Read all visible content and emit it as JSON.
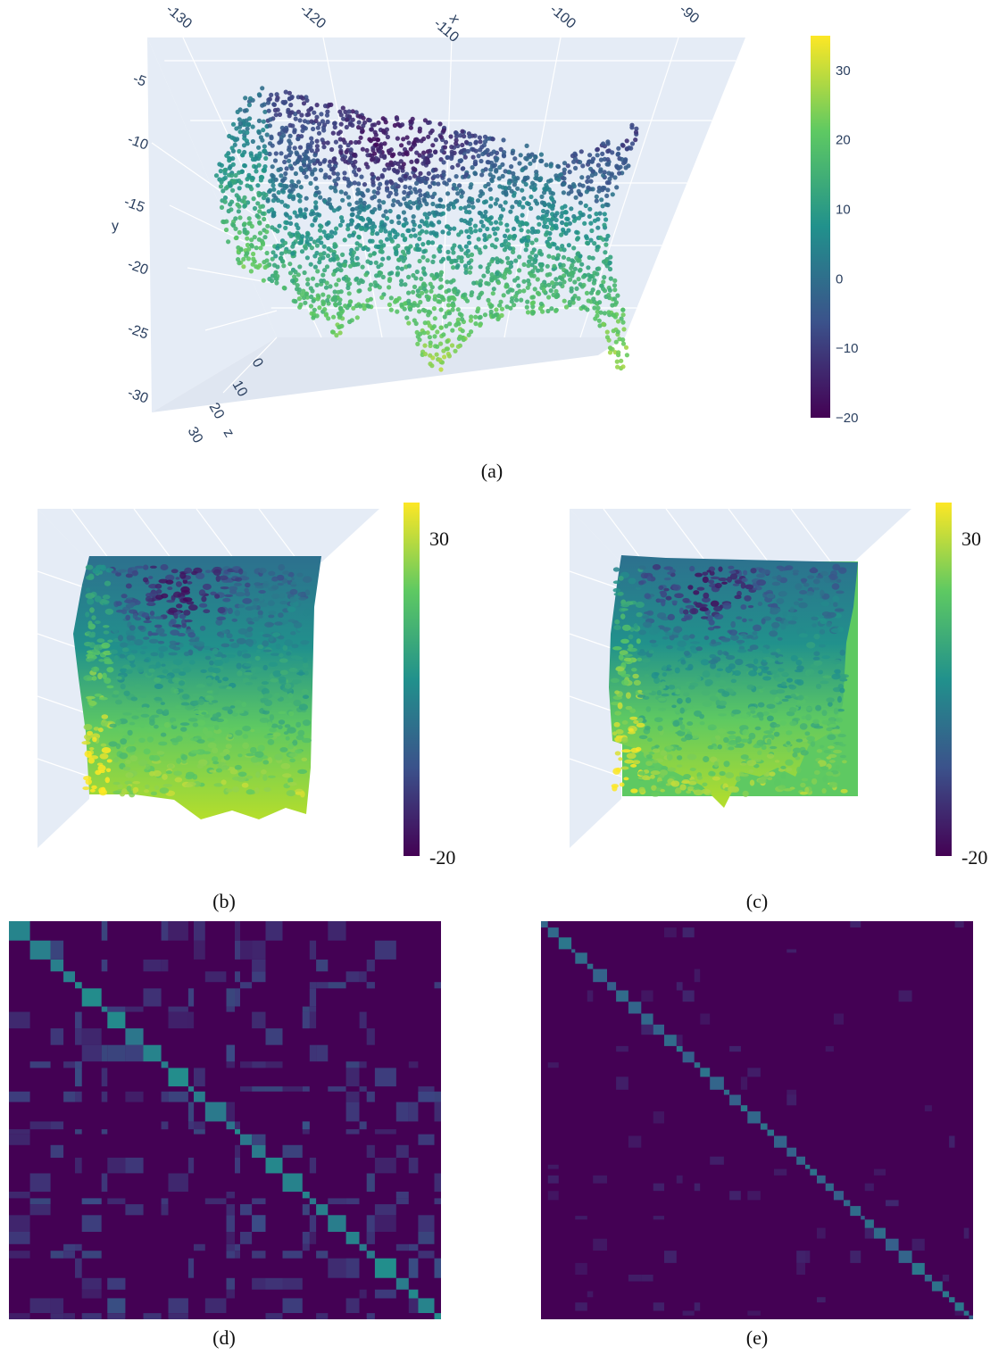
{
  "panels": [
    {
      "id": "a",
      "caption": "(a)"
    },
    {
      "id": "b",
      "caption": "(b)"
    },
    {
      "id": "c",
      "caption": "(c)"
    },
    {
      "id": "d",
      "caption": "(d)"
    },
    {
      "id": "e",
      "caption": "(e)"
    }
  ],
  "colorscale": [
    "#440154",
    "#3b528b",
    "#21918c",
    "#5ec962",
    "#fde725"
  ],
  "chart_data": [
    {
      "type": "scatter",
      "title": "",
      "axes": {
        "x": {
          "label": "x",
          "ticks": [
            "-130",
            "-120",
            "-110",
            "-100",
            "-90"
          ]
        },
        "y": {
          "label": "y",
          "ticks": [
            "-5",
            "-10",
            "-15",
            "-20",
            "-25",
            "-30"
          ]
        },
        "z": {
          "label": "z",
          "ticks": [
            "0",
            "10",
            "20",
            "30"
          ]
        }
      },
      "colorbar": {
        "ticks": [
          "30",
          "20",
          "10",
          "0",
          "−10",
          "−20"
        ],
        "range": [
          -20,
          35
        ]
      },
      "description_points": "Dense cloud of points shaped like the contiguous USA, colored by value"
    },
    {
      "type": "surface",
      "colorbar": {
        "ticks": [
          "30",
          "-20"
        ],
        "range": [
          -20,
          35
        ]
      }
    },
    {
      "type": "surface",
      "colorbar": {
        "ticks": [
          "30",
          "-20"
        ],
        "range": [
          -20,
          35
        ]
      }
    },
    {
      "type": "heatmap",
      "pattern": "block-diagonal matrix with many off-diagonal blocks"
    },
    {
      "type": "heatmap",
      "pattern": "sparse block-diagonal matrix"
    }
  ]
}
